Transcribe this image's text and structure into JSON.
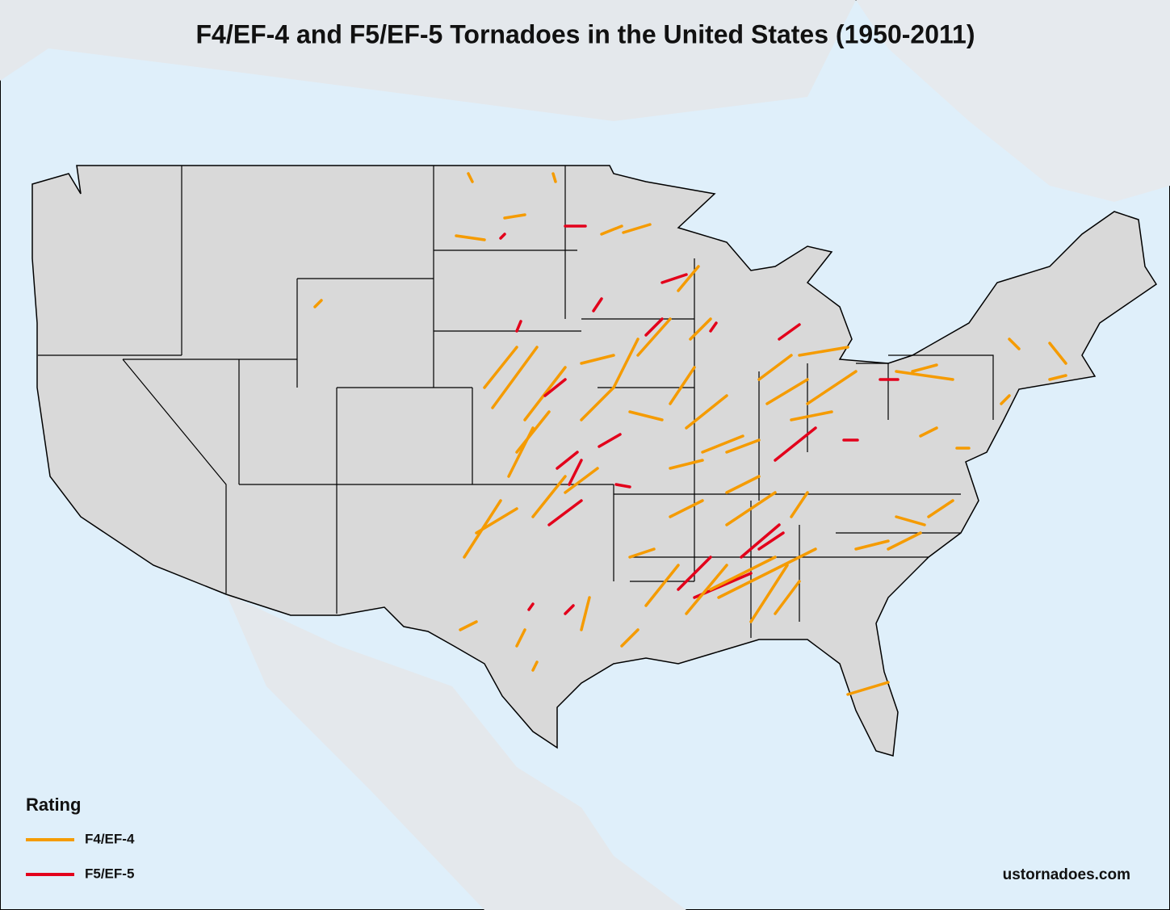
{
  "title": "F4/EF-4 and F5/EF-5 Tornadoes in the United States (1950-2011)",
  "legend": {
    "title": "Rating",
    "items": [
      {
        "label": "F4/EF-4",
        "color": "#f59b00"
      },
      {
        "label": "F5/EF-5",
        "color": "#e3001b"
      }
    ]
  },
  "credit": "ustornadoes.com"
}
